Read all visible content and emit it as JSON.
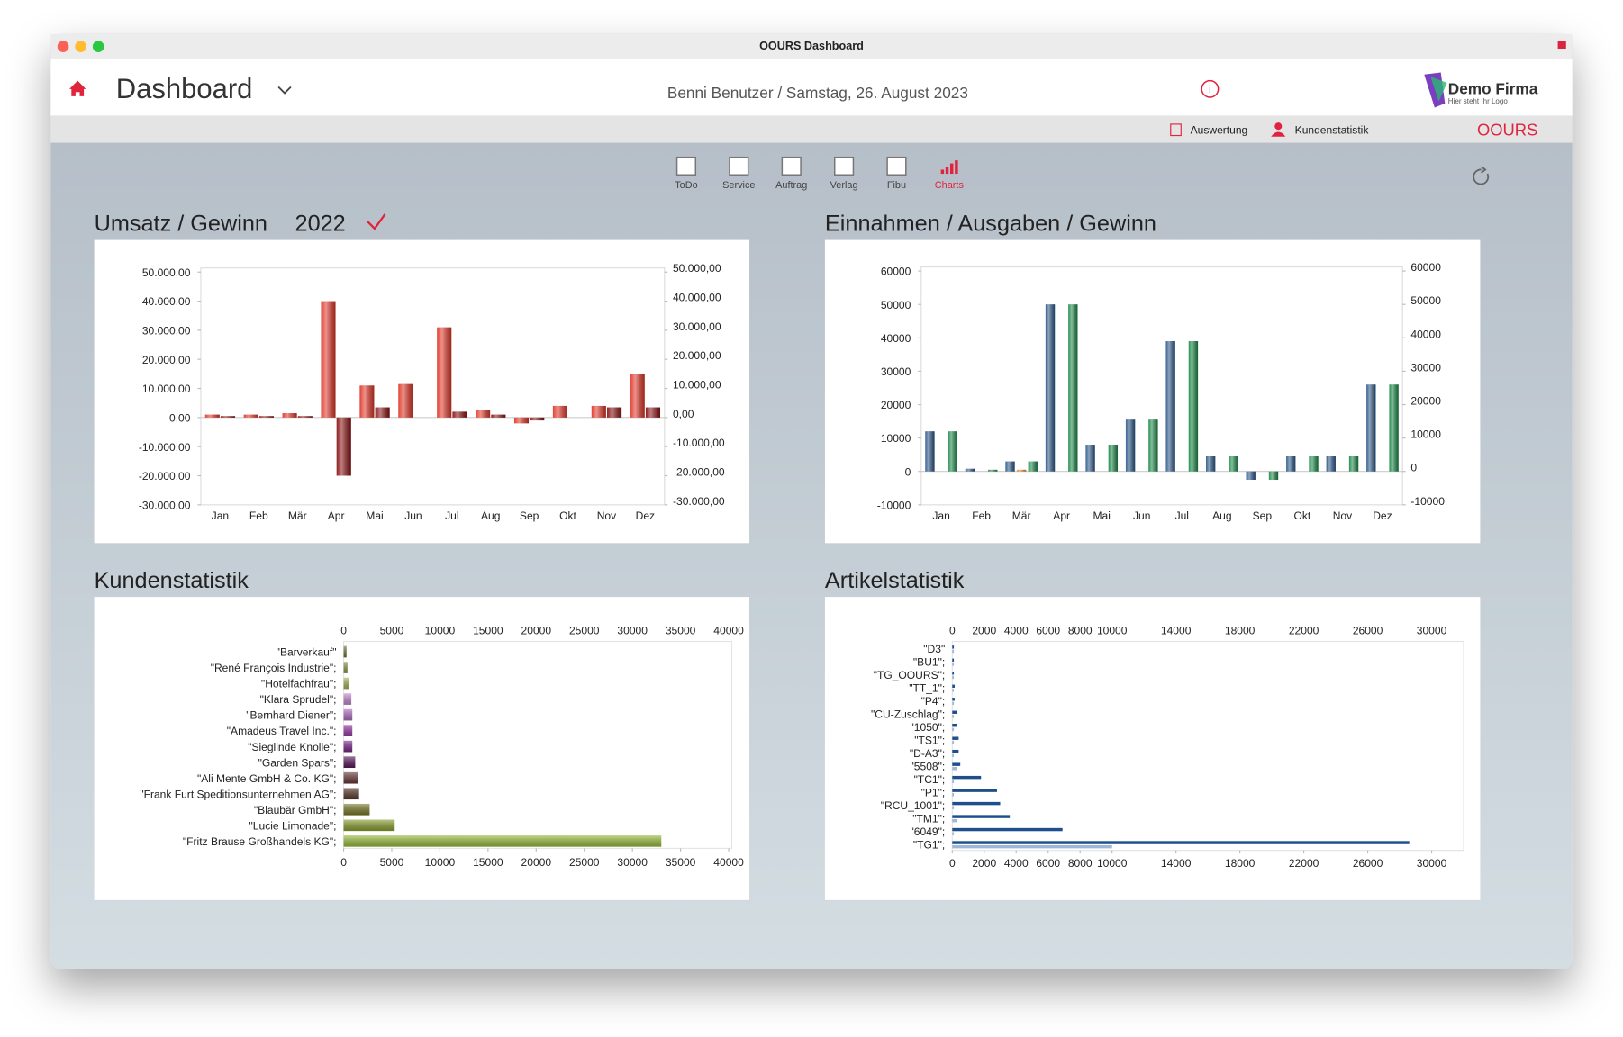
{
  "window_title": "OOURS Dashboard",
  "header": {
    "title": "Dashboard",
    "user_date": "Benni Benutzer / Samstag, 26. August 2023",
    "logo_name": "Demo Firma",
    "logo_tagline": "Hier steht Ihr Logo"
  },
  "subbar": {
    "links": [
      "Auswertung",
      "Kundenstatistik"
    ],
    "brand": "OOURS"
  },
  "toolbar": [
    "ToDo",
    "Service",
    "Auftrag",
    "Verlag",
    "Fibu",
    "Charts"
  ],
  "year": "2022",
  "chart_data": [
    {
      "type": "bar",
      "title": "Umsatz / Gewinn",
      "categories": [
        "Jan",
        "Feb",
        "Mär",
        "Apr",
        "Mai",
        "Jun",
        "Jul",
        "Aug",
        "Sep",
        "Okt",
        "Nov",
        "Dez"
      ],
      "series": [
        {
          "color": "#e0392b",
          "values": [
            1000,
            1000,
            1500,
            40000,
            11000,
            11500,
            31000,
            2500,
            -2000,
            4000,
            4000,
            15000
          ]
        },
        {
          "color": "#8a1414",
          "values": [
            500,
            500,
            500,
            -20000,
            3500,
            0,
            2000,
            1000,
            -1000,
            0,
            3500,
            3500
          ]
        }
      ],
      "ylim": [
        -30000,
        50000
      ],
      "yticks": [
        {
          "value": -30000,
          "label": "-30.000,00"
        },
        {
          "value": -20000,
          "label": "-20.000,00"
        },
        {
          "value": -10000,
          "label": "-10.000,00"
        },
        {
          "value": 0,
          "label": "0,00"
        },
        {
          "value": 10000,
          "label": "10.000,00"
        },
        {
          "value": 20000,
          "label": "20.000,00"
        },
        {
          "value": 30000,
          "label": "30.000,00"
        },
        {
          "value": 40000,
          "label": "40.000,00"
        },
        {
          "value": 50000,
          "label": "50.000,00"
        }
      ],
      "y2lim": [
        -30000,
        50000
      ],
      "y2ticks": [
        {
          "value": -30000,
          "label": "-30.000,00"
        },
        {
          "value": -20000,
          "label": "-20.000,00"
        },
        {
          "value": -10000,
          "label": "-10.000,00"
        },
        {
          "value": 0,
          "label": "0,00"
        },
        {
          "value": 10000,
          "label": "10.000,00"
        },
        {
          "value": 20000,
          "label": "20.000,00"
        },
        {
          "value": 30000,
          "label": "30.000,00"
        },
        {
          "value": 40000,
          "label": "40.000,00"
        },
        {
          "value": 50000,
          "label": "50.000,00"
        }
      ]
    },
    {
      "type": "bar",
      "title": "Einnahmen / Ausgaben / Gewinn",
      "categories": [
        "Jan",
        "Feb",
        "Mär",
        "Apr",
        "Mai",
        "Jun",
        "Jul",
        "Aug",
        "Sep",
        "Okt",
        "Nov",
        "Dez"
      ],
      "series": [
        {
          "color": "#2f5a8a",
          "values": [
            12000,
            800,
            3000,
            50000,
            8000,
            15500,
            39000,
            4500,
            -2500,
            4500,
            4500,
            26000
          ]
        },
        {
          "color": "#e0902a",
          "values": [
            0,
            0,
            500,
            0,
            0,
            0,
            0,
            0,
            0,
            0,
            0,
            0
          ]
        },
        {
          "color": "#1f8a4a",
          "values": [
            12000,
            500,
            3000,
            50000,
            8000,
            15500,
            39000,
            4500,
            -2500,
            4500,
            4500,
            26000
          ]
        }
      ],
      "ylim": [
        -10000,
        60000
      ],
      "yticks": [
        -10000,
        0,
        10000,
        20000,
        30000,
        40000,
        50000,
        60000
      ],
      "y2lim": [
        -10000,
        60000
      ],
      "y2ticks": [
        -10000,
        0,
        10000,
        20000,
        30000,
        40000,
        50000,
        60000
      ]
    },
    {
      "type": "barh",
      "title": "Kundenstatistik",
      "categories": [
        "\"Barverkauf\"",
        "\"René François Industrie\";",
        "\"Hotelfachfrau\";",
        "\"Klara Sprudel\";",
        "\"Bernhard Diener\";",
        "\"Amadeus Travel Inc.\";",
        "\"Sieglinde Knolle\";",
        "\"Garden Spars\";",
        "\"Ali Mente GmbH & Co. KG\";",
        "\"Frank Furt Speditionsunternehmen AG\";",
        "\"Blaubär GmbH\";",
        "\"Lucie Limonade\";",
        "\"Fritz Brause Großhandels KG\";"
      ],
      "series": [
        {
          "colors": [
            "#6b7a3a",
            "#8a9a4a",
            "#a5b55a",
            "#c58ad0",
            "#b070c0",
            "#9a3aa8",
            "#7a2a8a",
            "#5a1a5a",
            "#6a3a3a",
            "#5a3a2a",
            "#7a7a2a",
            "#8aa030",
            "#9ac040"
          ],
          "values": [
            300,
            400,
            600,
            800,
            900,
            900,
            900,
            1200,
            1500,
            1600,
            2700,
            5300,
            33000
          ]
        }
      ],
      "xlim": [
        0,
        40000
      ],
      "xticks": [
        0,
        5000,
        10000,
        15000,
        20000,
        25000,
        30000,
        35000,
        40000
      ]
    },
    {
      "type": "barh",
      "title": "Artikelstatistik",
      "categories": [
        "\"D3\"",
        "\"BU1\";",
        "\"TG_OOURS\";",
        "\"TT_1\";",
        "\"P4\";",
        "\"CU-Zuschlag\";",
        "\"1050\";",
        "\"TS1\";",
        "\"D-A3\";",
        "\"5508\";",
        "\"TC1\";",
        "\"P1\";",
        "\"RCU_1001\";",
        "\"TM1\";",
        "\"6049\";",
        "\"TG1\";"
      ],
      "series": [
        {
          "color": "#1f4e8c",
          "values": [
            100,
            100,
            100,
            150,
            150,
            300,
            300,
            400,
            400,
            500,
            1800,
            2800,
            3000,
            3600,
            6900,
            28600
          ]
        },
        {
          "color": "#9db8d8",
          "values": [
            100,
            100,
            100,
            100,
            100,
            100,
            100,
            100,
            100,
            300,
            100,
            100,
            100,
            300,
            100,
            10000
          ]
        }
      ],
      "xlim": [
        0,
        32000
      ],
      "xticks": [
        0,
        2000,
        4000,
        6000,
        8000,
        10000,
        14000,
        18000,
        22000,
        26000,
        30000
      ]
    }
  ]
}
